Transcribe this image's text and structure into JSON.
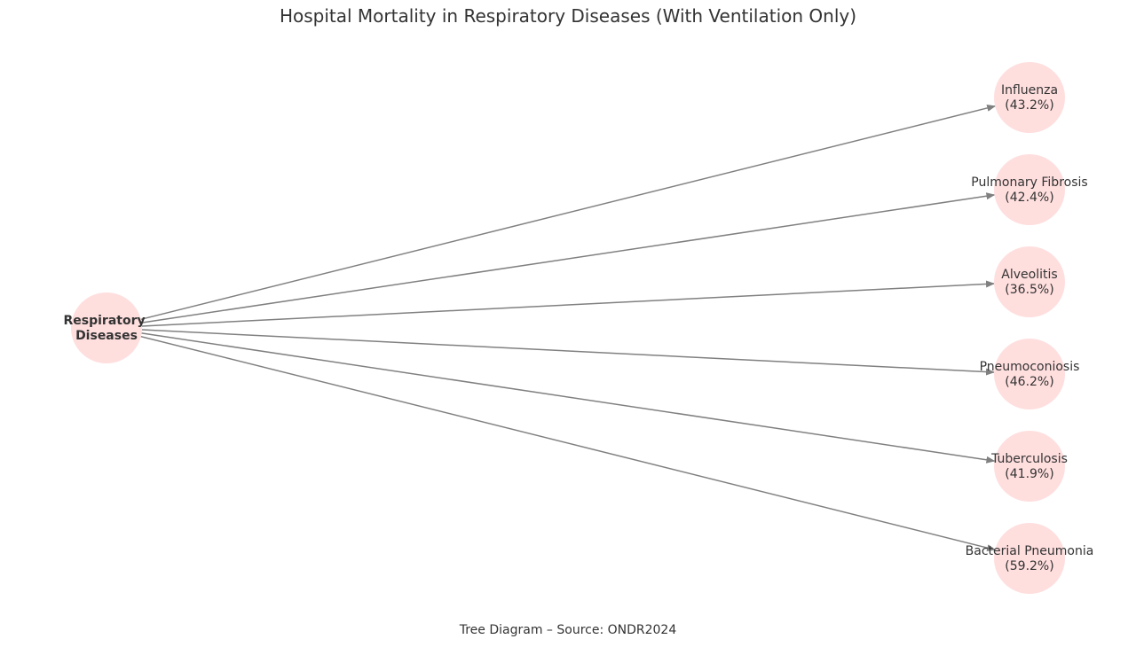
{
  "title": "Hospital Mortality in Respiratory Diseases (With Ventilation Only)",
  "caption": "Tree Diagram – Source: ONDR2024",
  "colors": {
    "node_fill": "#ffdede",
    "edge": "#808080",
    "text": "#333333"
  },
  "root": {
    "line1": "Respiratory",
    "line2": "Diseases"
  },
  "children": [
    {
      "name": "Influenza",
      "value": "(43.2%)"
    },
    {
      "name": "Pulmonary Fibrosis",
      "value": "(42.4%)"
    },
    {
      "name": "Alveolitis",
      "value": "(36.5%)"
    },
    {
      "name": "Pneumoconiosis",
      "value": "(46.2%)"
    },
    {
      "name": "Tuberculosis",
      "value": "(41.9%)"
    },
    {
      "name": "Bacterial Pneumonia",
      "value": "(59.2%)"
    }
  ]
}
